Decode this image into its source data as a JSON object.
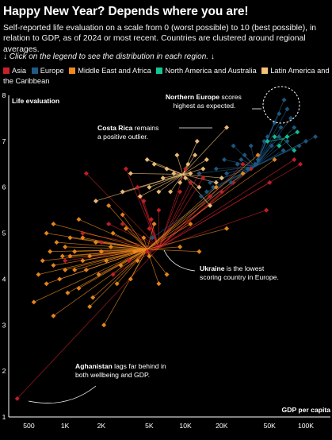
{
  "header": {
    "title": "Happy New Year? Depends where you are!",
    "subtitle": "Self-reported life evaluation on a scale from 0 (worst possible) to 10 (best possible), in relation to GDP, as of 2024 or most recent. Countries are clustered around regional averages.",
    "instruction": "↓ Click on the legend to see the distribution in each region. ↓"
  },
  "legend": [
    {
      "label": "Asia",
      "color": "#c8202a"
    },
    {
      "label": "Europe",
      "color": "#1f5a84"
    },
    {
      "label": "Middle East and Africa",
      "color": "#ee8a1c"
    },
    {
      "label": "North America and Australia",
      "color": "#15c593"
    },
    {
      "label": "Latin America and the Caribbean",
      "color": "#f4c27a"
    }
  ],
  "annotations": {
    "northern_europe": {
      "bold": "Northern Europe",
      "rest1": " scores",
      "rest2": "highest as expected."
    },
    "costa_rica": {
      "bold": "Costa Rica",
      "rest1": " remains",
      "rest2": "a positive outlier."
    },
    "ukraine": {
      "bold": "Ukraine",
      "rest1": " is the lowest",
      "rest2": "scoring country in Europe."
    },
    "afghanistan": {
      "bold": "Aghanistan",
      "rest1": " lags far behind in",
      "rest2": "both wellbeing and GDP."
    }
  },
  "chart_data": {
    "type": "scatter",
    "xlabel": "GDP per capita",
    "ylabel": "Life evaluation",
    "x_scale": "log",
    "xlim": [
      340,
      160000
    ],
    "ylim": [
      1,
      8
    ],
    "x_ticks": [
      500,
      1000,
      2000,
      5000,
      10000,
      20000,
      50000,
      100000
    ],
    "x_tick_labels": [
      "500",
      "1K",
      "2K",
      "5K",
      "10K",
      "20K",
      "50K",
      "100K"
    ],
    "y_ticks": [
      1,
      2,
      3,
      4,
      5,
      6,
      7,
      8
    ],
    "y_tick_labels": [
      "1",
      "2",
      "3",
      "4",
      "5",
      "6",
      "7",
      "8"
    ],
    "lines_to_regional_average": true,
    "series": [
      {
        "name": "Asia",
        "color": "#c8202a",
        "centroid": [
          6000,
          4.68
        ],
        "points": [
          [
            400,
            1.4
          ],
          [
            1000,
            4.4
          ],
          [
            1400,
            5.0
          ],
          [
            2000,
            4.8
          ],
          [
            2300,
            5.2
          ],
          [
            2500,
            4.1
          ],
          [
            3000,
            5.2
          ],
          [
            3400,
            4.4
          ],
          [
            4000,
            6.0
          ],
          [
            4200,
            5.8
          ],
          [
            4500,
            5.7
          ],
          [
            4800,
            4.6
          ],
          [
            5000,
            5.1
          ],
          [
            5200,
            5.3
          ],
          [
            6000,
            5.5
          ],
          [
            9000,
            5.9
          ],
          [
            10000,
            6.4
          ],
          [
            11000,
            6.1
          ],
          [
            13000,
            6.3
          ],
          [
            14000,
            6.2
          ],
          [
            16000,
            5.8
          ],
          [
            20000,
            5.9
          ],
          [
            25000,
            6.1
          ],
          [
            30000,
            6.5
          ],
          [
            35000,
            6.4
          ],
          [
            47000,
            5.5
          ],
          [
            50000,
            6.1
          ],
          [
            80000,
            6.6
          ],
          [
            90000,
            6.5
          ],
          [
            3200,
            6.4
          ],
          [
            1500,
            6.3
          ]
        ]
      },
      {
        "name": "Europe",
        "color": "#1f5a84",
        "centroid": [
          38000,
          6.45
        ],
        "points": [
          [
            5300,
            4.9
          ],
          [
            13000,
            6.3
          ],
          [
            13500,
            5.8
          ],
          [
            15000,
            5.9
          ],
          [
            16000,
            6.1
          ],
          [
            17000,
            6.0
          ],
          [
            18000,
            6.4
          ],
          [
            20000,
            6.2
          ],
          [
            21000,
            6.6
          ],
          [
            22000,
            6.3
          ],
          [
            24000,
            6.1
          ],
          [
            25000,
            6.9
          ],
          [
            27000,
            6.5
          ],
          [
            29000,
            6.6
          ],
          [
            31000,
            6.7
          ],
          [
            33000,
            6.4
          ],
          [
            35000,
            6.9
          ],
          [
            38000,
            6.5
          ],
          [
            40000,
            6.6
          ],
          [
            45000,
            7.0
          ],
          [
            48000,
            7.1
          ],
          [
            52000,
            6.9
          ],
          [
            55000,
            7.4
          ],
          [
            60000,
            7.1
          ],
          [
            62000,
            7.3
          ],
          [
            65000,
            6.8
          ],
          [
            70000,
            7.0
          ],
          [
            75000,
            7.5
          ],
          [
            80000,
            7.3
          ],
          [
            88000,
            6.9
          ],
          [
            100000,
            7.0
          ],
          [
            120000,
            7.1
          ],
          [
            60000,
            7.6
          ],
          [
            70000,
            7.7
          ],
          [
            66000,
            7.9
          ]
        ]
      },
      {
        "name": "Middle East and Africa",
        "color": "#ee8a1c",
        "centroid": [
          4800,
          4.65
        ],
        "points": [
          [
            550,
            3.5
          ],
          [
            600,
            4.1
          ],
          [
            650,
            4.4
          ],
          [
            700,
            3.9
          ],
          [
            700,
            5.0
          ],
          [
            750,
            4.6
          ],
          [
            800,
            3.2
          ],
          [
            800,
            4.3
          ],
          [
            850,
            4.8
          ],
          [
            900,
            4.0
          ],
          [
            950,
            4.5
          ],
          [
            1000,
            4.2
          ],
          [
            1000,
            4.7
          ],
          [
            1050,
            3.7
          ],
          [
            1100,
            4.5
          ],
          [
            1100,
            4.9
          ],
          [
            1200,
            4.2
          ],
          [
            1200,
            4.6
          ],
          [
            1300,
            3.8
          ],
          [
            1400,
            4.4
          ],
          [
            1400,
            4.9
          ],
          [
            1500,
            4.2
          ],
          [
            1600,
            4.5
          ],
          [
            1700,
            3.6
          ],
          [
            1800,
            4.8
          ],
          [
            1900,
            4.1
          ],
          [
            2000,
            4.6
          ],
          [
            2100,
            3.0
          ],
          [
            2200,
            4.4
          ],
          [
            2400,
            4.7
          ],
          [
            2500,
            5.0
          ],
          [
            2700,
            3.9
          ],
          [
            2900,
            4.3
          ],
          [
            3200,
            5.1
          ],
          [
            3500,
            4.0
          ],
          [
            3800,
            4.6
          ],
          [
            4000,
            4.4
          ],
          [
            4500,
            4.9
          ],
          [
            5500,
            5.2
          ],
          [
            5000,
            4.5
          ],
          [
            6000,
            3.9
          ],
          [
            7000,
            4.1
          ],
          [
            9000,
            4.7
          ],
          [
            11000,
            5.2
          ],
          [
            13000,
            4.6
          ],
          [
            18000,
            6.0
          ],
          [
            22000,
            5.1
          ],
          [
            30000,
            6.3
          ],
          [
            40000,
            6.7
          ],
          [
            55000,
            6.6
          ],
          [
            1600,
            3.4
          ],
          [
            2300,
            5.6
          ],
          [
            800,
            5.2
          ],
          [
            1300,
            5.3
          ],
          [
            3000,
            5.4
          ]
        ]
      },
      {
        "name": "North America and Australia",
        "color": "#15c593",
        "centroid": [
          65000,
          7.05
        ],
        "points": [
          [
            48000,
            7.0
          ],
          [
            55000,
            7.1
          ],
          [
            60000,
            6.9
          ],
          [
            70000,
            7.1
          ],
          [
            80000,
            6.8
          ],
          [
            85000,
            7.2
          ]
        ]
      },
      {
        "name": "Latin America and the Caribbean",
        "color": "#f4c27a",
        "centroid": [
          9500,
          6.28
        ],
        "points": [
          [
            1800,
            5.7
          ],
          [
            3000,
            5.9
          ],
          [
            3500,
            6.3
          ],
          [
            4200,
            5.8
          ],
          [
            5000,
            6.0
          ],
          [
            5500,
            6.5
          ],
          [
            6000,
            5.9
          ],
          [
            6500,
            6.2
          ],
          [
            7000,
            6.4
          ],
          [
            7500,
            5.9
          ],
          [
            8000,
            6.3
          ],
          [
            8500,
            6.7
          ],
          [
            9000,
            6.1
          ],
          [
            10000,
            6.2
          ],
          [
            10500,
            6.5
          ],
          [
            11000,
            6.3
          ],
          [
            12000,
            6.7
          ],
          [
            13000,
            6.0
          ],
          [
            14000,
            6.4
          ],
          [
            15000,
            6.6
          ],
          [
            16000,
            5.6
          ],
          [
            18000,
            6.1
          ],
          [
            20000,
            6.2
          ],
          [
            22000,
            7.3
          ],
          [
            12500,
            7.0
          ],
          [
            4800,
            6.6
          ]
        ]
      }
    ]
  }
}
